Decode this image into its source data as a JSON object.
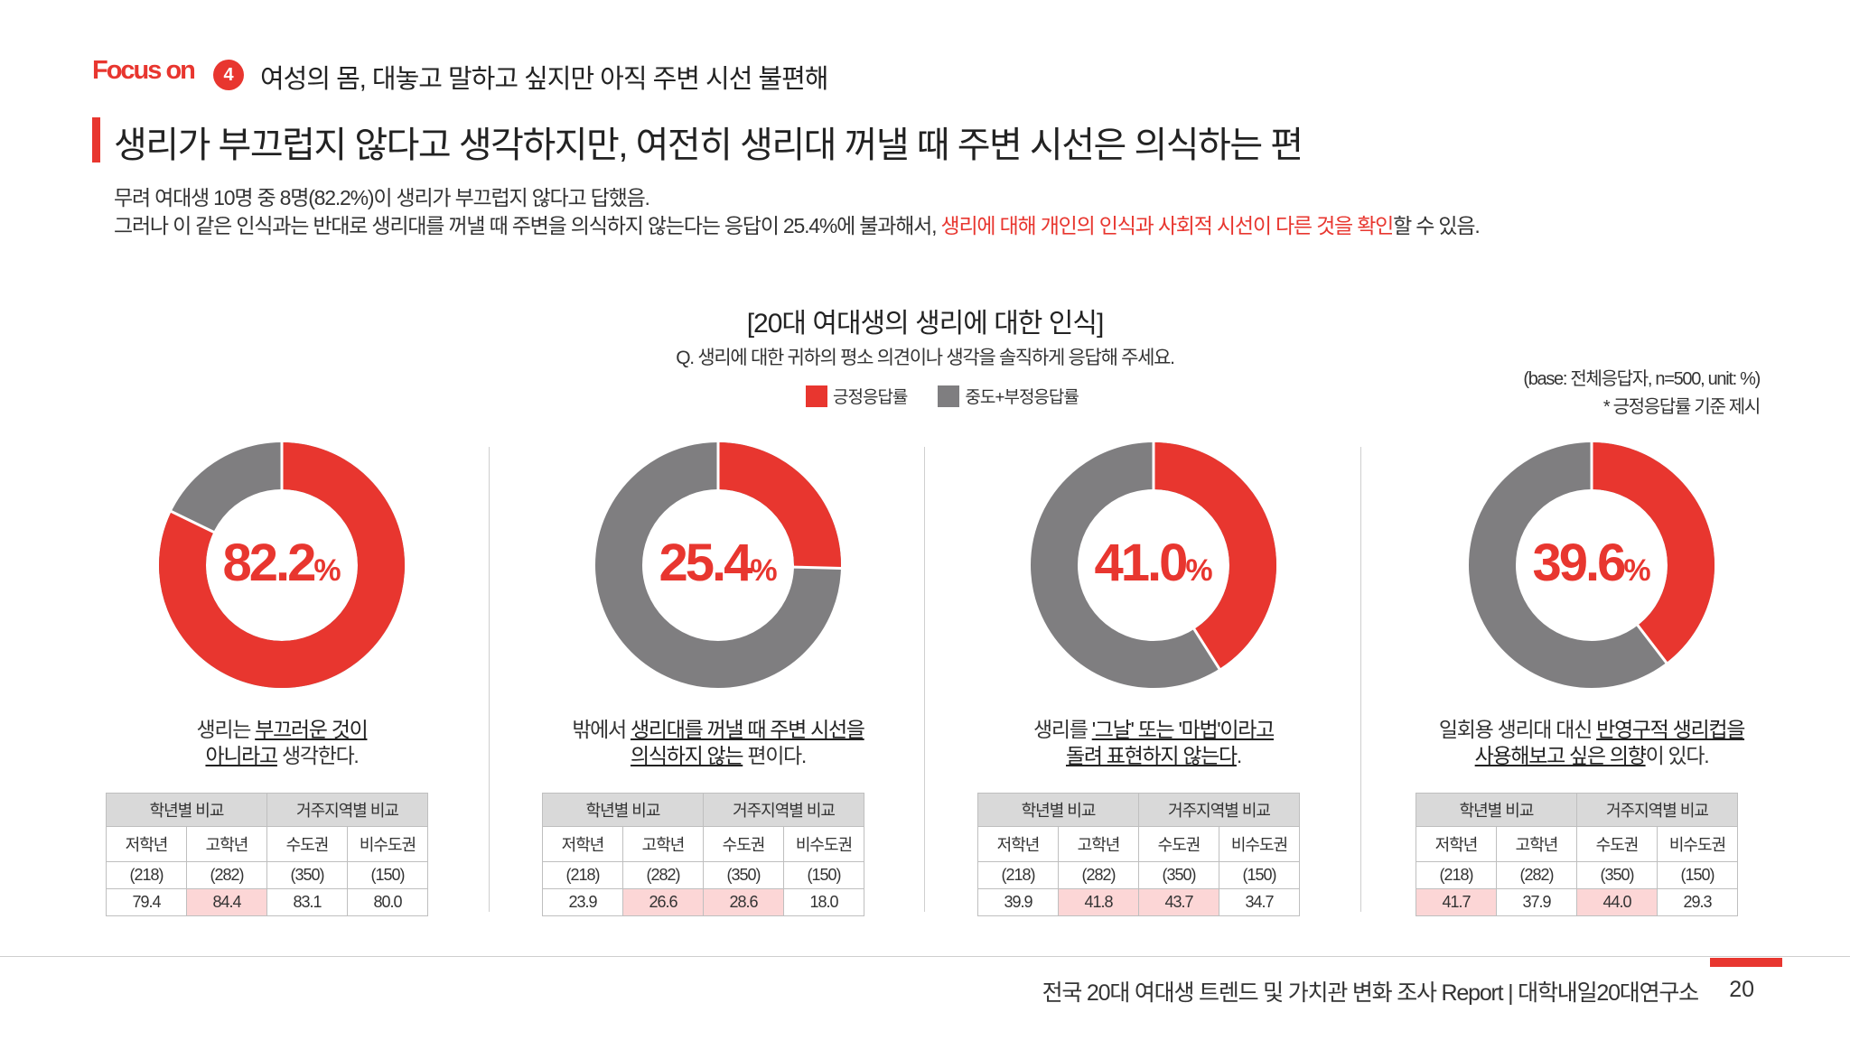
{
  "header": {
    "focus_label": "Focus on",
    "section_number": "4",
    "section_title": "여성의 몸, 대놓고 말하고 싶지만 아직 주변 시선 불편해"
  },
  "headline": "생리가 부끄럽지 않다고 생각하지만, 여전히 생리대 꺼낼 때 주변 시선은 의식하는 편",
  "summary": {
    "line1": "무려 여대생 10명 중 8명(82.2%)이 생리가 부끄럽지 않다고 답했음.",
    "line2_prefix": "그러나 이 같은 인식과는 반대로 생리대를 꺼낼 때 주변을 의식하지 않는다는 응답이 25.4%에 불과해서, ",
    "line2_highlight": "생리에 대해 개인의 인식과 사회적 시선이 다른 것을 확인",
    "line2_suffix": "할 수 있음."
  },
  "colors": {
    "accent": "#e8362f",
    "negative": "#7f7e80",
    "highlight_cell": "#fcd6d6",
    "table_header": "#d9d9d9"
  },
  "chart_data": {
    "type": "pie",
    "variant": "donut",
    "title": "[20대 여대생의 생리에 대한 인식]",
    "question": "Q. 생리에 대한 귀하의 평소 의견이나 생각을 솔직하게 응답해 주세요.",
    "legend": [
      "긍정응답률",
      "중도+부정응답률"
    ],
    "base_note": "(base: 전체응답자, n=500, unit: %)",
    "note": "* 긍정응답률 기준 제시",
    "group_header": [
      "학년별 비교",
      "거주지역별 비교"
    ],
    "subgroups": [
      "저학년",
      "고학년",
      "수도권",
      "비수도권"
    ],
    "sample_sizes": [
      "(218)",
      "(282)",
      "(350)",
      "(150)"
    ],
    "items": [
      {
        "value": 82.2,
        "value_label": "82.2",
        "caption_parts": [
          {
            "text": "생리는 ",
            "u": false
          },
          {
            "text": "부끄러운 것이",
            "u": true
          },
          {
            "br": true
          },
          {
            "text": "아니라고",
            "u": true
          },
          {
            "text": " 생각한다.",
            "u": false
          }
        ],
        "values": [
          79.4,
          84.4,
          83.1,
          80.0
        ],
        "value_labels": [
          "79.4",
          "84.4",
          "83.1",
          "80.0"
        ],
        "highlight": [
          false,
          true,
          false,
          false
        ]
      },
      {
        "value": 25.4,
        "value_label": "25.4",
        "caption_parts": [
          {
            "text": "밖에서 ",
            "u": false
          },
          {
            "text": "생리대를 꺼낼 때 주변 시선을",
            "u": true
          },
          {
            "br": true
          },
          {
            "text": "의식하지 않는",
            "u": true
          },
          {
            "text": " 편이다.",
            "u": false
          }
        ],
        "values": [
          23.9,
          26.6,
          28.6,
          18.0
        ],
        "value_labels": [
          "23.9",
          "26.6",
          "28.6",
          "18.0"
        ],
        "highlight": [
          false,
          true,
          true,
          false
        ]
      },
      {
        "value": 41.0,
        "value_label": "41.0",
        "caption_parts": [
          {
            "text": "생리를 ",
            "u": false
          },
          {
            "text": "'그날' 또는 '마법'이라고",
            "u": true
          },
          {
            "br": true
          },
          {
            "text": "돌려 표현하지 않는다",
            "u": true
          },
          {
            "text": ".",
            "u": false
          }
        ],
        "values": [
          39.9,
          41.8,
          43.7,
          34.7
        ],
        "value_labels": [
          "39.9",
          "41.8",
          "43.7",
          "34.7"
        ],
        "highlight": [
          false,
          true,
          true,
          false
        ]
      },
      {
        "value": 39.6,
        "value_label": "39.6",
        "caption_parts": [
          {
            "text": "일회용 생리대 대신 ",
            "u": false
          },
          {
            "text": "반영구적 생리컵을",
            "u": true
          },
          {
            "br": true
          },
          {
            "text": "사용해보고 싶은 의향",
            "u": true
          },
          {
            "text": "이 있다.",
            "u": false
          }
        ],
        "values": [
          41.7,
          37.9,
          44.0,
          29.3
        ],
        "value_labels": [
          "41.7",
          "37.9",
          "44.0",
          "29.3"
        ],
        "highlight": [
          true,
          false,
          true,
          false
        ]
      }
    ]
  },
  "footer": {
    "text": "전국 20대 여대생 트렌드 및 가치관 변화 조사 Report  |  대학내일20대연구소",
    "page": "20"
  }
}
